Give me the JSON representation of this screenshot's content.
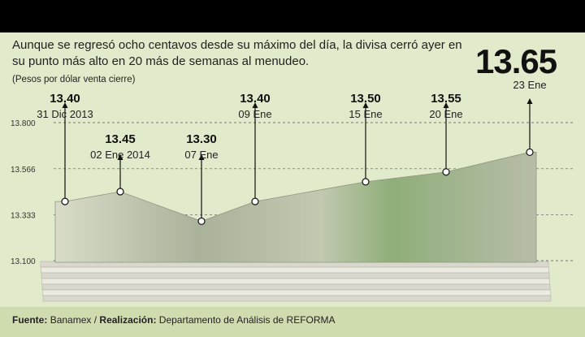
{
  "headline": "Aunque se regresó ocho centavos desde su máximo del día, la divisa cerró ayer en su punto más alto en 20 más de semanas al menudeo.",
  "highlight": {
    "value": "13.65",
    "date": "23 Ene"
  },
  "footer": {
    "source_label": "Fuente:",
    "source": "Banamex",
    "sep": "/",
    "credit_label": "Realización:",
    "credit": "Departamento de Análisis de REFORMA"
  },
  "chart_data": {
    "type": "area",
    "title": "",
    "ylabel": "(Pesos por dólar venta cierre)",
    "ylim": [
      13.1,
      13.8
    ],
    "yticks": [
      "13.800",
      "13.566",
      "13.333",
      "13.100"
    ],
    "ytick_values": [
      13.8,
      13.566,
      13.333,
      13.1
    ],
    "grid": true,
    "points": [
      {
        "date": "31 Dic 2013",
        "value": 13.4,
        "label": "13.40",
        "pos": "above"
      },
      {
        "date": "02 Ene 2014",
        "value": 13.45,
        "label": "13.45",
        "pos": "mid"
      },
      {
        "date": "07 Ene",
        "value": 13.3,
        "label": "13.30",
        "pos": "mid"
      },
      {
        "date": "09 Ene",
        "value": 13.4,
        "label": "13.40",
        "pos": "above"
      },
      {
        "date": "15 Ene",
        "value": 13.5,
        "label": "13.50",
        "pos": "above"
      },
      {
        "date": "20 Ene",
        "value": 13.55,
        "label": "13.55",
        "pos": "above"
      },
      {
        "date": "23 Ene",
        "value": 13.65,
        "label": "13.65",
        "pos": "top"
      }
    ],
    "colors": {
      "marker": "#ffffff",
      "line": "#111111",
      "bill": "#c9cdb8"
    }
  }
}
